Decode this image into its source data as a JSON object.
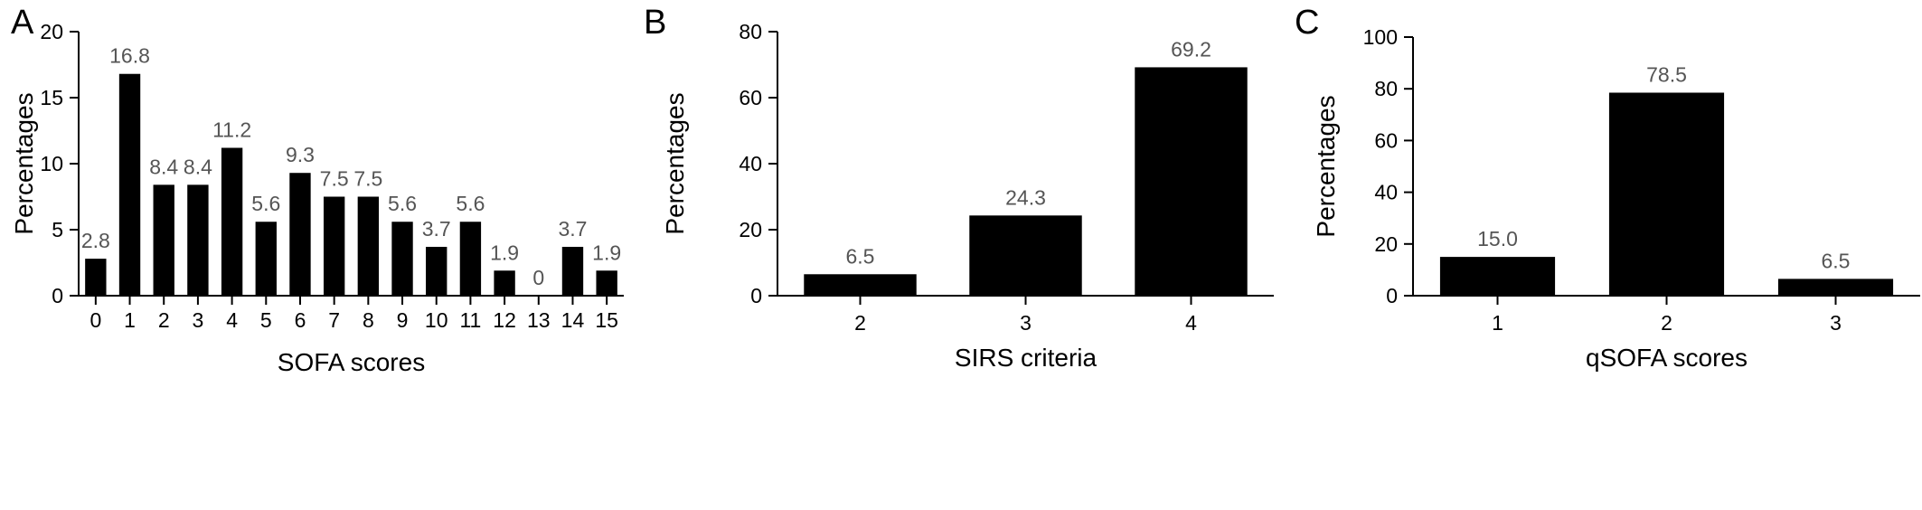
{
  "panels": [
    {
      "letter": "A",
      "chart_data": {
        "type": "bar",
        "categories": [
          "0",
          "1",
          "2",
          "3",
          "4",
          "5",
          "6",
          "7",
          "8",
          "9",
          "10",
          "11",
          "12",
          "13",
          "14",
          "15"
        ],
        "values": [
          2.8,
          16.8,
          8.4,
          8.4,
          11.2,
          5.6,
          9.3,
          7.5,
          7.5,
          5.6,
          3.7,
          5.6,
          1.9,
          0,
          3.7,
          1.9
        ],
        "value_labels": [
          "2.8",
          "16.8",
          "8.4",
          "8.4",
          "11.2",
          "5.6",
          "9.3",
          "7.5",
          "7.5",
          "5.6",
          "3.7",
          "5.6",
          "1.9",
          "0",
          "3.7",
          "1.9"
        ],
        "xlabel": "SOFA scores",
        "ylabel": "Percentages",
        "ylim": [
          0,
          20
        ],
        "yticks": [
          0,
          5,
          10,
          15,
          20
        ],
        "grid": false,
        "bar_color": "#000000",
        "label_color": "#555555"
      }
    },
    {
      "letter": "B",
      "chart_data": {
        "type": "bar",
        "categories": [
          "2",
          "3",
          "4"
        ],
        "values": [
          6.5,
          24.3,
          69.2
        ],
        "value_labels": [
          "6.5",
          "24.3",
          "69.2"
        ],
        "xlabel": "SIRS criteria",
        "ylabel": "Percentages",
        "ylim": [
          0,
          80
        ],
        "yticks": [
          0,
          20,
          40,
          60,
          80
        ],
        "grid": false,
        "bar_color": "#000000",
        "label_color": "#555555"
      }
    },
    {
      "letter": "C",
      "chart_data": {
        "type": "bar",
        "categories": [
          "1",
          "2",
          "3"
        ],
        "values": [
          15.0,
          78.5,
          6.5
        ],
        "value_labels": [
          "15.0",
          "78.5",
          "6.5"
        ],
        "xlabel": "qSOFA scores",
        "ylabel": "Percentages",
        "ylim": [
          0,
          100
        ],
        "yticks": [
          0,
          20,
          40,
          60,
          80,
          100
        ],
        "grid": false,
        "bar_color": "#000000",
        "label_color": "#555555"
      }
    }
  ]
}
